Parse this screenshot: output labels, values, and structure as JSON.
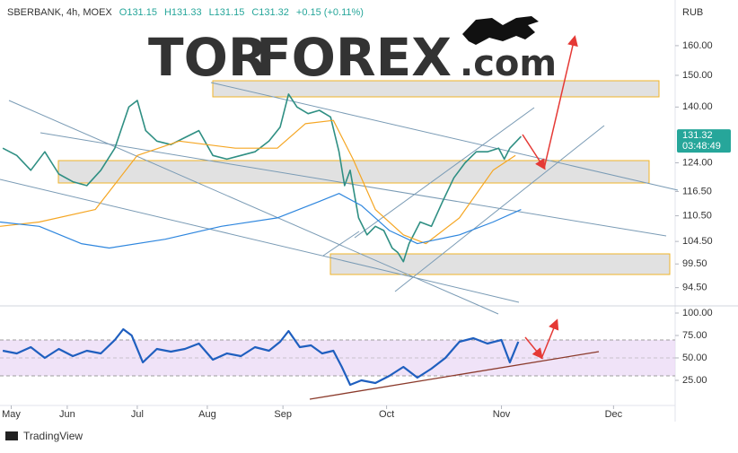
{
  "header": {
    "symbol": "SBERBANK, 4h, MOEX",
    "ohlc": [
      "O131.15",
      "H131.33",
      "L131.15",
      "C131.32"
    ],
    "change": "+0.15 (+0.11%)"
  },
  "logo": {
    "part1": "TOR",
    "part2": "FOREX",
    "part3": ".com"
  },
  "footer": {
    "brand": "TradingView"
  },
  "chart_data": [
    {
      "type": "line",
      "unit": "RUB",
      "log_scale": true,
      "last_price_label": "131.32",
      "countdown": "03:48:49",
      "xlim": [
        -4,
        237
      ],
      "xticks": [
        {
          "value": 0,
          "label": "May"
        },
        {
          "value": 20,
          "label": "Jun"
        },
        {
          "value": 45,
          "label": "Jul"
        },
        {
          "value": 70,
          "label": "Aug"
        },
        {
          "value": 97,
          "label": "Sep"
        },
        {
          "value": 134,
          "label": "Oct"
        },
        {
          "value": 175,
          "label": "Nov"
        },
        {
          "value": 215,
          "label": "Dec"
        }
      ],
      "ylim": [
        91,
        175
      ],
      "yticks": [
        {
          "value": 160,
          "label": "160.00"
        },
        {
          "value": 150,
          "label": "150.00"
        },
        {
          "value": 140,
          "label": "140.00"
        },
        {
          "value": 124,
          "label": "124.00"
        },
        {
          "value": 116.5,
          "label": "116.50"
        },
        {
          "value": 110.5,
          "label": "110.50"
        },
        {
          "value": 104.5,
          "label": "104.50"
        },
        {
          "value": 99.5,
          "label": "99.50"
        },
        {
          "value": 94.5,
          "label": "94.50"
        }
      ],
      "series": [
        {
          "color": "#2f8f83",
          "width": 1.6,
          "x": [
            -3,
            2,
            7,
            12,
            17,
            22,
            27,
            32,
            37,
            42,
            45,
            48,
            52,
            57,
            62,
            67,
            72,
            77,
            82,
            87,
            92,
            96,
            99,
            102,
            106,
            110,
            114,
            117,
            119,
            121,
            124,
            127,
            130,
            133,
            136,
            138,
            140,
            142,
            146,
            150,
            154,
            158,
            162,
            166,
            170,
            174,
            176,
            178,
            182
          ],
          "values": [
            128,
            126,
            122,
            127,
            121,
            119,
            118,
            122,
            128,
            140,
            142,
            133,
            130,
            129,
            131,
            133,
            126,
            125,
            126,
            127,
            130,
            134,
            144,
            140,
            138,
            139,
            137,
            127,
            118,
            122,
            110,
            106,
            108,
            107,
            103,
            102,
            100,
            104,
            109,
            108,
            114,
            120,
            124,
            127,
            127,
            128,
            125,
            128,
            131.32
          ]
        },
        {
          "color": "#f5a623",
          "width": 1.2,
          "x": [
            -4,
            10,
            30,
            45,
            60,
            80,
            95,
            105,
            115,
            122,
            130,
            140,
            148,
            160,
            172,
            180
          ],
          "values": [
            108,
            109,
            112,
            126,
            130,
            128,
            128,
            135,
            136,
            125,
            112,
            106,
            104,
            110,
            122,
            126
          ]
        },
        {
          "color": "#2e86de",
          "width": 1.2,
          "x": [
            -4,
            10,
            25,
            35,
            55,
            75,
            95,
            110,
            117,
            125,
            135,
            145,
            160,
            172,
            182
          ],
          "values": [
            109,
            108,
            104,
            103,
            105,
            108,
            110,
            114,
            116,
            113,
            107,
            104,
            106,
            109,
            112
          ]
        }
      ]
    },
    {
      "type": "line",
      "xlim": [
        -4,
        237
      ],
      "ylim": [
        0,
        105
      ],
      "yticks": [
        {
          "value": 100,
          "label": "100.00"
        },
        {
          "value": 75,
          "label": "75.00"
        },
        {
          "value": 50,
          "label": "50.00"
        },
        {
          "value": 25,
          "label": "25.00"
        }
      ],
      "series": [
        {
          "color": "#1f5fbf",
          "width": 2.2,
          "x": [
            -3,
            2,
            7,
            12,
            17,
            22,
            27,
            32,
            37,
            40,
            43,
            47,
            52,
            57,
            62,
            67,
            72,
            77,
            82,
            87,
            92,
            96,
            99,
            103,
            107,
            111,
            115,
            118,
            121,
            125,
            130,
            135,
            140,
            145,
            150,
            155,
            160,
            165,
            170,
            175,
            178,
            181
          ],
          "values": [
            58,
            55,
            62,
            50,
            60,
            52,
            58,
            55,
            70,
            82,
            75,
            45,
            60,
            57,
            60,
            66,
            48,
            55,
            52,
            62,
            58,
            68,
            80,
            62,
            64,
            55,
            58,
            40,
            20,
            25,
            22,
            30,
            40,
            28,
            38,
            50,
            68,
            72,
            66,
            70,
            45,
            68
          ]
        }
      ]
    }
  ]
}
